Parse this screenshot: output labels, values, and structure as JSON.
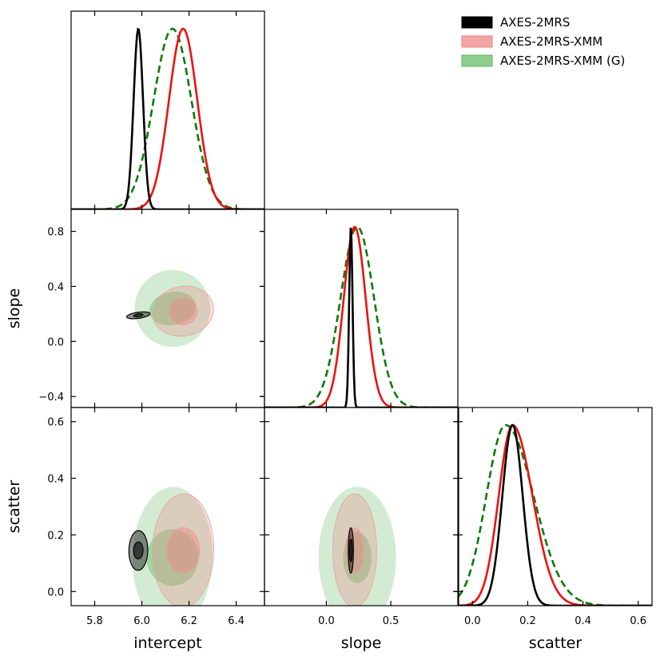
{
  "chart_data": {
    "type": "corner",
    "parameters": [
      "intercept",
      "slope",
      "scatter"
    ],
    "axes": {
      "intercept": {
        "label": "intercept",
        "range": [
          5.7,
          6.52
        ],
        "ticks": [
          5.8,
          6.0,
          6.2,
          6.4
        ],
        "tick_labels": [
          "5.8",
          "6.0",
          "6.2",
          "6.4"
        ]
      },
      "slope": {
        "label": "slope",
        "range": [
          -0.48,
          0.96
        ],
        "ticks": [
          -0.4,
          0.0,
          0.4,
          0.8
        ],
        "tick_labels": [
          "−0.4",
          "0.0",
          "0.4",
          "0.8"
        ],
        "x_ticks": [
          0.0,
          0.5
        ],
        "x_tick_labels": [
          "0.0",
          "0.5"
        ],
        "x_range": [
          -0.48,
          1.02
        ]
      },
      "scatter": {
        "label": "scatter",
        "range": [
          -0.05,
          0.65
        ],
        "ticks": [
          0.0,
          0.2,
          0.4,
          0.6
        ],
        "tick_labels": [
          "0.0",
          "0.2",
          "0.4",
          "0.6"
        ]
      }
    },
    "series": [
      {
        "name": "AXES-2MRS",
        "color": "#000000",
        "fill": "#000000",
        "line_style": "solid",
        "mean": {
          "intercept": 5.985,
          "slope": 0.19,
          "scatter": 0.145
        },
        "sigma": {
          "intercept": 0.02,
          "slope": 0.013,
          "scatter": 0.037
        },
        "contour_1sigma": {
          "intercept_slope": [
            0.02,
            0.01
          ],
          "intercept_scatter": [
            0.02,
            0.03
          ],
          "slope_scatter": [
            0.01,
            0.04
          ]
        },
        "contour_2sigma": {
          "intercept_slope": [
            0.05,
            0.022
          ],
          "intercept_scatter": [
            0.04,
            0.07
          ],
          "slope_scatter": [
            0.02,
            0.08
          ]
        }
      },
      {
        "name": "AXES-2MRS-XMM",
        "color": "#ee1111",
        "fill": "#f08080",
        "line_style": "solid",
        "mean": {
          "intercept": 6.175,
          "slope": 0.22,
          "scatter": 0.145
        },
        "sigma": {
          "intercept": 0.06,
          "slope": 0.085,
          "scatter": 0.05
        },
        "contour_1sigma": {
          "intercept_slope": [
            0.06,
            0.1
          ],
          "intercept_scatter": [
            0.07,
            0.08
          ],
          "slope_scatter": [
            0.07,
            0.08
          ]
        },
        "contour_2sigma": {
          "intercept_slope": [
            0.13,
            0.18
          ],
          "intercept_scatter": [
            0.13,
            0.2
          ],
          "slope_scatter": [
            0.17,
            0.2
          ]
        }
      },
      {
        "name": "AXES-2MRS-XMM (G)",
        "color": "#0a7a0a",
        "fill": "#5cb85c",
        "line_style": "dashed",
        "mean": {
          "intercept": 6.13,
          "slope": 0.24,
          "scatter": 0.12
        },
        "sigma": {
          "intercept": 0.08,
          "slope": 0.13,
          "scatter": 0.07
        },
        "contour_1sigma": {
          "intercept_slope": [
            0.1,
            0.12
          ],
          "intercept_scatter": [
            0.11,
            0.1
          ],
          "slope_scatter": [
            0.11,
            0.09
          ]
        },
        "contour_2sigma": {
          "intercept_slope": [
            0.16,
            0.28
          ],
          "intercept_scatter": [
            0.17,
            0.25
          ],
          "slope_scatter": [
            0.3,
            0.25
          ]
        }
      }
    ],
    "legend": {
      "position": "top-right",
      "entries": [
        "AXES-2MRS",
        "AXES-2MRS-XMM",
        "AXES-2MRS-XMM (G)"
      ]
    },
    "grid": false
  }
}
